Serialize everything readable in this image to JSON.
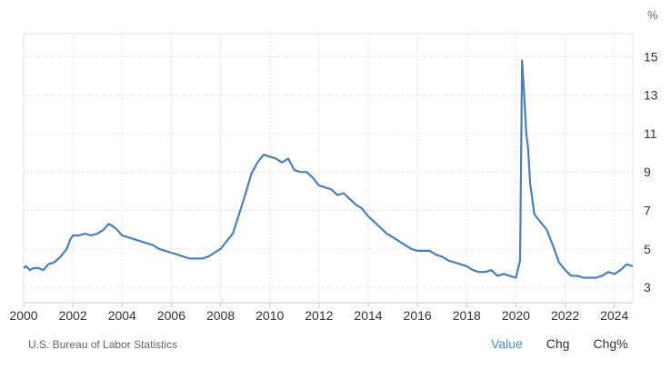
{
  "chart_data": {
    "type": "line",
    "unit": "%",
    "xlim": [
      2000,
      2024.75
    ],
    "ylim": [
      2.2,
      16.2
    ],
    "x_ticks": [
      2000,
      2002,
      2004,
      2006,
      2008,
      2010,
      2012,
      2014,
      2016,
      2018,
      2020,
      2022,
      2024
    ],
    "x_tick_labels": [
      "2000",
      "2002",
      "2004",
      "2006",
      "2008",
      "2010",
      "2012",
      "2014",
      "2016",
      "2018",
      "2020",
      "2022",
      "2024"
    ],
    "y_ticks": [
      3,
      5,
      7,
      9,
      11,
      13,
      15
    ],
    "y_tick_labels": [
      "3",
      "5",
      "7",
      "9",
      "11",
      "13",
      "15"
    ],
    "grid": "dotted",
    "series": [
      {
        "color": "#4a7fbb",
        "points": [
          [
            2000.0,
            4.0
          ],
          [
            2000.1,
            4.1
          ],
          [
            2000.25,
            3.9
          ],
          [
            2000.4,
            4.0
          ],
          [
            2000.6,
            4.0
          ],
          [
            2000.8,
            3.9
          ],
          [
            2001.0,
            4.2
          ],
          [
            2001.25,
            4.3
          ],
          [
            2001.5,
            4.6
          ],
          [
            2001.75,
            5.0
          ],
          [
            2001.9,
            5.5
          ],
          [
            2002.0,
            5.7
          ],
          [
            2002.25,
            5.7
          ],
          [
            2002.5,
            5.8
          ],
          [
            2002.75,
            5.7
          ],
          [
            2003.0,
            5.8
          ],
          [
            2003.25,
            6.0
          ],
          [
            2003.45,
            6.3
          ],
          [
            2003.6,
            6.2
          ],
          [
            2003.8,
            6.0
          ],
          [
            2004.0,
            5.7
          ],
          [
            2004.25,
            5.6
          ],
          [
            2004.5,
            5.5
          ],
          [
            2004.75,
            5.4
          ],
          [
            2005.0,
            5.3
          ],
          [
            2005.25,
            5.2
          ],
          [
            2005.5,
            5.0
          ],
          [
            2005.75,
            4.9
          ],
          [
            2006.0,
            4.8
          ],
          [
            2006.25,
            4.7
          ],
          [
            2006.5,
            4.6
          ],
          [
            2006.75,
            4.5
          ],
          [
            2007.0,
            4.5
          ],
          [
            2007.25,
            4.5
          ],
          [
            2007.5,
            4.6
          ],
          [
            2007.75,
            4.8
          ],
          [
            2008.0,
            5.0
          ],
          [
            2008.25,
            5.4
          ],
          [
            2008.5,
            5.8
          ],
          [
            2008.75,
            6.8
          ],
          [
            2009.0,
            7.8
          ],
          [
            2009.25,
            8.9
          ],
          [
            2009.5,
            9.5
          ],
          [
            2009.75,
            9.9
          ],
          [
            2010.0,
            9.8
          ],
          [
            2010.25,
            9.7
          ],
          [
            2010.5,
            9.5
          ],
          [
            2010.75,
            9.7
          ],
          [
            2011.0,
            9.1
          ],
          [
            2011.25,
            9.0
          ],
          [
            2011.5,
            9.0
          ],
          [
            2011.75,
            8.7
          ],
          [
            2012.0,
            8.3
          ],
          [
            2012.25,
            8.2
          ],
          [
            2012.5,
            8.1
          ],
          [
            2012.75,
            7.8
          ],
          [
            2013.0,
            7.9
          ],
          [
            2013.25,
            7.6
          ],
          [
            2013.5,
            7.3
          ],
          [
            2013.75,
            7.1
          ],
          [
            2014.0,
            6.7
          ],
          [
            2014.25,
            6.4
          ],
          [
            2014.5,
            6.1
          ],
          [
            2014.75,
            5.8
          ],
          [
            2015.0,
            5.6
          ],
          [
            2015.25,
            5.4
          ],
          [
            2015.5,
            5.2
          ],
          [
            2015.75,
            5.0
          ],
          [
            2016.0,
            4.9
          ],
          [
            2016.25,
            4.9
          ],
          [
            2016.5,
            4.9
          ],
          [
            2016.75,
            4.7
          ],
          [
            2017.0,
            4.6
          ],
          [
            2017.25,
            4.4
          ],
          [
            2017.5,
            4.3
          ],
          [
            2017.75,
            4.2
          ],
          [
            2018.0,
            4.1
          ],
          [
            2018.25,
            3.9
          ],
          [
            2018.5,
            3.8
          ],
          [
            2018.75,
            3.8
          ],
          [
            2019.0,
            3.9
          ],
          [
            2019.25,
            3.6
          ],
          [
            2019.5,
            3.7
          ],
          [
            2019.75,
            3.6
          ],
          [
            2020.0,
            3.5
          ],
          [
            2020.17,
            4.4
          ],
          [
            2020.25,
            14.8
          ],
          [
            2020.33,
            13.2
          ],
          [
            2020.42,
            11.0
          ],
          [
            2020.5,
            10.2
          ],
          [
            2020.58,
            8.4
          ],
          [
            2020.75,
            6.8
          ],
          [
            2021.0,
            6.4
          ],
          [
            2021.25,
            6.0
          ],
          [
            2021.5,
            5.2
          ],
          [
            2021.75,
            4.3
          ],
          [
            2022.0,
            3.9
          ],
          [
            2022.25,
            3.6
          ],
          [
            2022.5,
            3.6
          ],
          [
            2022.75,
            3.5
          ],
          [
            2023.0,
            3.5
          ],
          [
            2023.25,
            3.5
          ],
          [
            2023.5,
            3.6
          ],
          [
            2023.75,
            3.8
          ],
          [
            2024.0,
            3.7
          ],
          [
            2024.25,
            3.9
          ],
          [
            2024.5,
            4.2
          ],
          [
            2024.75,
            4.1
          ]
        ]
      }
    ]
  },
  "footer": {
    "source": "U.S. Bureau of Labor Statistics",
    "tabs": [
      "Value",
      "Chg",
      "Chg%"
    ],
    "active_tab": "Value"
  },
  "colors": {
    "line": "#4a7fbb",
    "grid": "#e3e3e3",
    "active_tab": "#4a8fd4"
  }
}
